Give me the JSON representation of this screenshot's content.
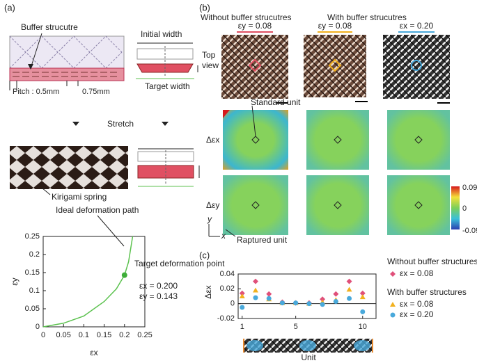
{
  "panel_labels": [
    "(a)",
    "(b)",
    "(c)"
  ],
  "panel_a": {
    "buffer_label": "Buffer strucutre",
    "pitch_label": "Pitch : 0.5mm",
    "width_label": "0.75mm",
    "initial_width": "Initial width",
    "target_width": "Target width",
    "stretch": "Stretch",
    "spring": "Kirigami spring"
  },
  "panel_b": {
    "group_without": "Without buffer strucutres",
    "group_with": "With buffer strucutres",
    "columns": [
      "εy = 0.08",
      "εy = 0.08",
      "εx = 0.20"
    ],
    "row_top": [
      "Top",
      "view"
    ],
    "row_x": "Δεx",
    "row_y": "Δεy",
    "standard_unit": "Standard unit",
    "raptured_unit": "Raptured unit",
    "axis_y": "y",
    "axis_x": "x",
    "colorbar_ticks": [
      "0.09",
      "0",
      "-0.09"
    ]
  },
  "chart_data": [
    {
      "type": "line",
      "x_label": "εx",
      "y_label": "εy",
      "annotations": [
        "Ideal deformation path",
        "Target deformation point",
        "εx = 0.200",
        "εy = 0.143"
      ],
      "x": [
        0,
        0.05,
        0.1,
        0.15,
        0.18,
        0.2,
        0.21,
        0.22
      ],
      "series": [
        {
          "name": "Ideal deformation path",
          "color": "#5cc24f",
          "values": [
            0,
            0.01,
            0.03,
            0.07,
            0.105,
            0.143,
            0.18,
            0.25
          ]
        }
      ],
      "points": [
        {
          "x": 0.2,
          "y": 0.143,
          "color": "#3fae3a"
        }
      ],
      "xlim": [
        0,
        0.25
      ],
      "ylim": [
        0,
        0.25
      ],
      "xticks": [
        0,
        0.05,
        0.1,
        0.15,
        0.2,
        0.25
      ],
      "yticks": [
        0,
        0.05,
        0.1,
        0.15,
        0.2,
        0.25
      ]
    },
    {
      "type": "scatter",
      "x_label": "Unit",
      "y_label": "Δεx",
      "legend_titles": [
        "Without buffer structures",
        "With buffer structures"
      ],
      "x": [
        1,
        2,
        3,
        4,
        5,
        6,
        7,
        8,
        9,
        10
      ],
      "series": [
        {
          "name": "εx = 0.08",
          "color": "#e0507a",
          "marker": "diamond",
          "values": [
            0.014,
            0.03,
            0.013,
            0.002,
            0.001,
            0.001,
            0.006,
            0.013,
            0.03,
            0.014
          ]
        },
        {
          "name": "εx = 0.08",
          "color": "#f2b11f",
          "marker": "triangle",
          "values": [
            0.01,
            0.018,
            0.006,
            0.001,
            0.001,
            0,
            0.002,
            0.005,
            0.019,
            0.009
          ]
        },
        {
          "name": "εx = 0.20",
          "color": "#49a9db",
          "marker": "circle",
          "values": [
            -0.005,
            0.008,
            0.007,
            0.001,
            0.001,
            0,
            -0.001,
            0.003,
            0.007,
            -0.011
          ]
        }
      ],
      "xlim": [
        0.7,
        11
      ],
      "ylim": [
        -0.02,
        0.04
      ],
      "xticks": [
        1,
        5,
        10
      ],
      "yticks": [
        -0.02,
        0,
        0.02,
        0.04
      ]
    }
  ]
}
